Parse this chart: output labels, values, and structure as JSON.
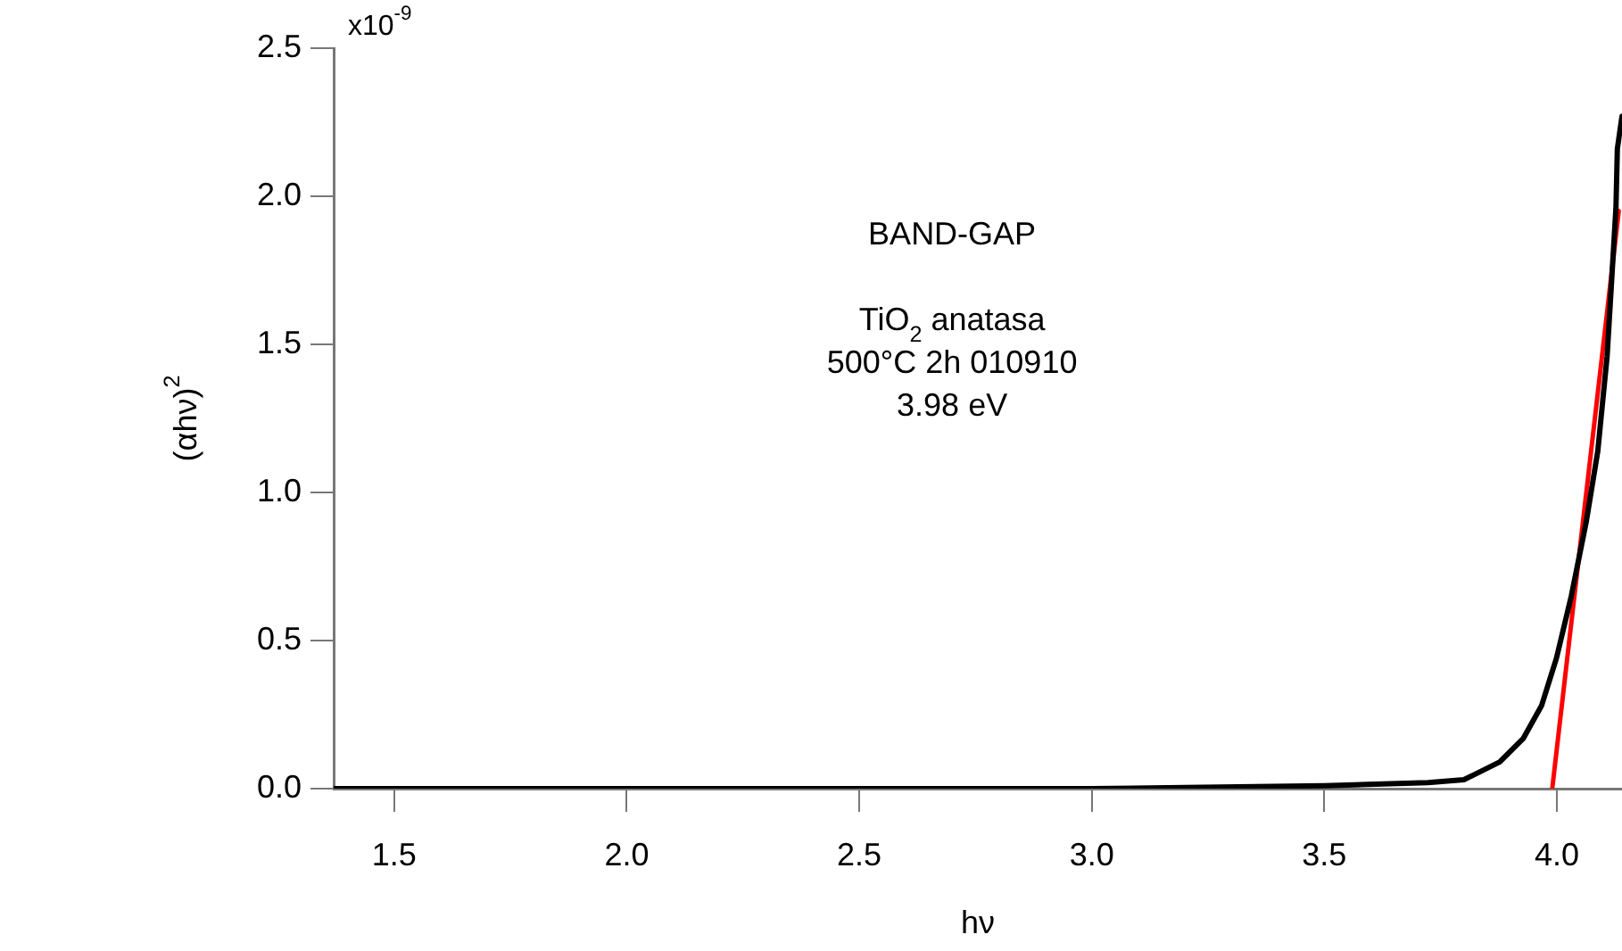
{
  "chart_data": {
    "type": "line",
    "xlabel": "hν",
    "ylabel": "(αhν)$^{2}$",
    "annotations": [
      "x10$^{-9}$",
      "BAND-GAP",
      "TiO$_{2}$ anatasa",
      "500°C 2h 010910",
      "3.98 eV"
    ],
    "xlim": [
      1.37,
      4.14
    ],
    "ylim": [
      0,
      2.5
    ],
    "xticks": [
      {
        "value": 1.5,
        "label": "1.5"
      },
      {
        "value": 2.0,
        "label": "2.0"
      },
      {
        "value": 2.5,
        "label": "2.5"
      },
      {
        "value": 3.0,
        "label": "3.0"
      },
      {
        "value": 3.5,
        "label": "3.5"
      },
      {
        "value": 4.0,
        "label": "4.0"
      }
    ],
    "yticks": [
      {
        "value": 0,
        "label": "0.0"
      },
      {
        "value": 0.5,
        "label": "0.5"
      },
      {
        "value": 1.0,
        "label": "1.0"
      },
      {
        "value": 1.5,
        "label": "1.5"
      },
      {
        "value": 2.0,
        "label": "2.0"
      },
      {
        "value": 2.5,
        "label": "2.5"
      }
    ],
    "grid": false,
    "legend": false,
    "marker": "none",
    "line_style": "solid",
    "series": [
      {
        "type": "line",
        "color": "#000000",
        "x": [
          1.37,
          2.0,
          2.5,
          3.0,
          3.5,
          3.723,
          3.8,
          3.826,
          3.877,
          3.928,
          3.967,
          3.999,
          4.031,
          4.063,
          4.088,
          4.108,
          4.127,
          4.13,
          4.14
        ],
        "values": [
          0,
          0,
          0,
          0,
          0.01,
          0.02,
          0.03,
          0.05,
          0.09,
          0.17,
          0.28,
          0.44,
          0.65,
          0.9,
          1.14,
          1.46,
          1.96,
          2.16,
          2.27
        ]
      },
      {
        "type": "line",
        "color": "#ff0000",
        "x": [
          3.99,
          4.133
        ],
        "values": [
          0,
          1.95
        ]
      }
    ]
  }
}
